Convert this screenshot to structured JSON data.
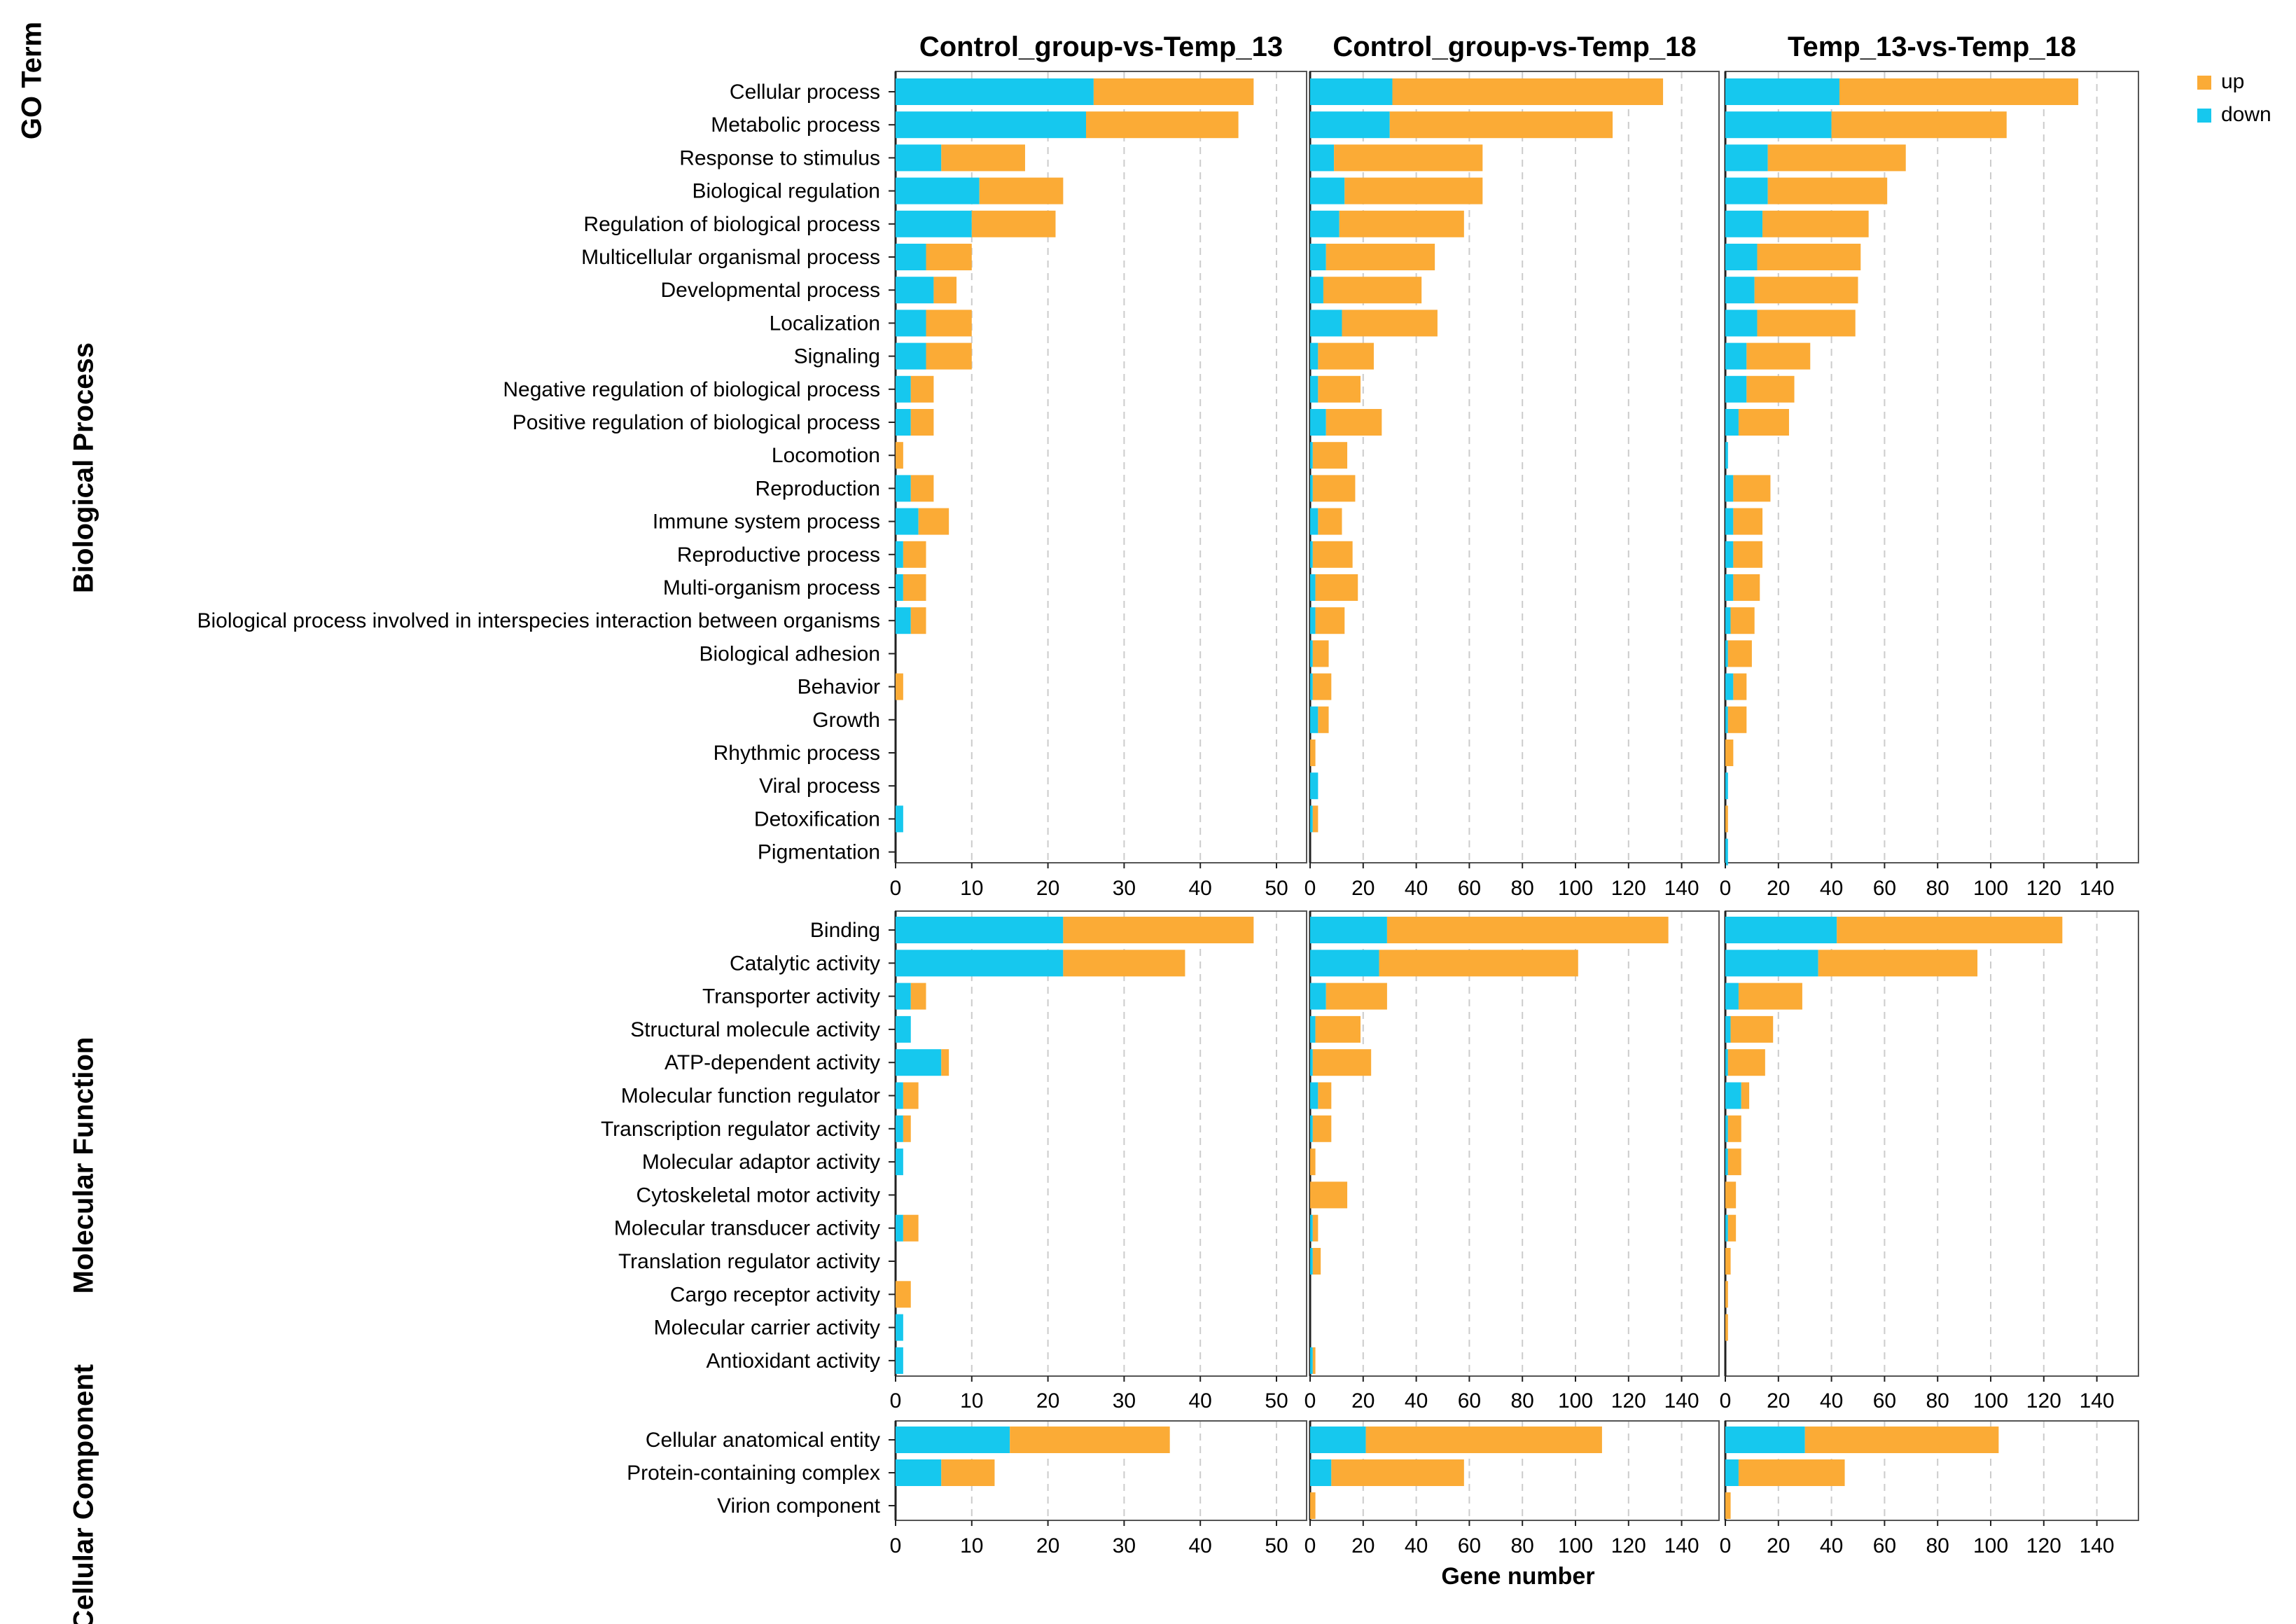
{
  "chart_data": {
    "type": "bar",
    "stacked": true,
    "orientation": "horizontal",
    "title_y": "GO Term",
    "xlabel": "Gene number",
    "colors": {
      "up": "#FBAB36",
      "down": "#16C8EE"
    },
    "legend": {
      "placement": "top-right",
      "entries": [
        {
          "key": "up",
          "label": "up"
        },
        {
          "key": "down",
          "label": "down"
        }
      ]
    },
    "comparisons": [
      {
        "title": "Control_group-vs-Temp_13",
        "xlim": [
          0,
          54
        ],
        "ticks": [
          "0",
          "10",
          "20",
          "30",
          "40",
          "50"
        ]
      },
      {
        "title": "Control_group-vs-Temp_18",
        "xlim": [
          0,
          154
        ],
        "ticks": [
          "0",
          "20",
          "40",
          "60",
          "80",
          "100",
          "120",
          "140"
        ]
      },
      {
        "title": "Temp_13-vs-Temp_18",
        "xlim": [
          0,
          154
        ],
        "ticks": [
          "0",
          "20",
          "40",
          "60",
          "80",
          "100",
          "120",
          "140"
        ]
      }
    ],
    "groups": [
      {
        "name": "Biological Process",
        "terms": [
          {
            "name": "Cellular process",
            "down": [
              26,
              31,
              43
            ],
            "up": [
              21,
              102,
              90
            ]
          },
          {
            "name": "Metabolic process",
            "down": [
              25,
              30,
              40
            ],
            "up": [
              20,
              84,
              66
            ]
          },
          {
            "name": "Response to stimulus",
            "down": [
              6,
              9,
              16
            ],
            "up": [
              11,
              56,
              52
            ]
          },
          {
            "name": "Biological regulation",
            "down": [
              11,
              13,
              16
            ],
            "up": [
              11,
              52,
              45
            ]
          },
          {
            "name": "Regulation of biological process",
            "down": [
              10,
              11,
              14
            ],
            "up": [
              11,
              47,
              40
            ]
          },
          {
            "name": "Multicellular organismal process",
            "down": [
              4,
              6,
              12
            ],
            "up": [
              6,
              41,
              39
            ]
          },
          {
            "name": "Developmental process",
            "down": [
              5,
              5,
              11
            ],
            "up": [
              3,
              37,
              39
            ]
          },
          {
            "name": "Localization",
            "down": [
              4,
              12,
              12
            ],
            "up": [
              6,
              36,
              37
            ]
          },
          {
            "name": "Signaling",
            "down": [
              4,
              3,
              8
            ],
            "up": [
              6,
              21,
              24
            ]
          },
          {
            "name": "Negative regulation of biological process",
            "down": [
              2,
              3,
              8
            ],
            "up": [
              3,
              16,
              18
            ]
          },
          {
            "name": "Positive regulation of biological process",
            "down": [
              2,
              6,
              5
            ],
            "up": [
              3,
              21,
              19
            ]
          },
          {
            "name": "Locomotion",
            "down": [
              0,
              1,
              1
            ],
            "up": [
              1,
              13,
              0
            ]
          },
          {
            "name": "Reproduction",
            "down": [
              2,
              1,
              3
            ],
            "up": [
              3,
              16,
              14
            ]
          },
          {
            "name": "Immune system process",
            "down": [
              3,
              3,
              3
            ],
            "up": [
              4,
              9,
              11
            ]
          },
          {
            "name": "Reproductive process",
            "down": [
              1,
              1,
              3
            ],
            "up": [
              3,
              15,
              11
            ]
          },
          {
            "name": "Multi-organism process",
            "down": [
              1,
              2,
              3
            ],
            "up": [
              3,
              16,
              10
            ]
          },
          {
            "name": "Biological process involved in interspecies interaction between organisms",
            "down": [
              2,
              2,
              2
            ],
            "up": [
              2,
              11,
              9
            ]
          },
          {
            "name": "Biological adhesion",
            "down": [
              0,
              1,
              1
            ],
            "up": [
              0,
              6,
              9
            ]
          },
          {
            "name": "Behavior",
            "down": [
              0,
              1,
              3
            ],
            "up": [
              1,
              7,
              5
            ]
          },
          {
            "name": "Growth",
            "down": [
              0,
              3,
              1
            ],
            "up": [
              0,
              4,
              7
            ]
          },
          {
            "name": "Rhythmic process",
            "down": [
              0,
              0,
              0
            ],
            "up": [
              0,
              2,
              3
            ]
          },
          {
            "name": "Viral process",
            "down": [
              0,
              3,
              1
            ],
            "up": [
              0,
              0,
              0
            ]
          },
          {
            "name": "Detoxification",
            "down": [
              1,
              1,
              0
            ],
            "up": [
              0,
              2,
              1
            ]
          },
          {
            "name": "Pigmentation",
            "down": [
              0,
              0,
              1
            ],
            "up": [
              0,
              0,
              0
            ]
          }
        ]
      },
      {
        "name": "Molecular Function",
        "terms": [
          {
            "name": "Binding",
            "down": [
              22,
              29,
              42
            ],
            "up": [
              25,
              106,
              85
            ]
          },
          {
            "name": "Catalytic activity",
            "down": [
              22,
              26,
              35
            ],
            "up": [
              16,
              75,
              60
            ]
          },
          {
            "name": "Transporter activity",
            "down": [
              2,
              6,
              5
            ],
            "up": [
              2,
              23,
              24
            ]
          },
          {
            "name": "Structural molecule activity",
            "down": [
              2,
              2,
              2
            ],
            "up": [
              0,
              17,
              16
            ]
          },
          {
            "name": "ATP-dependent activity",
            "down": [
              6,
              1,
              1
            ],
            "up": [
              1,
              22,
              14
            ]
          },
          {
            "name": "Molecular function regulator",
            "down": [
              1,
              3,
              6
            ],
            "up": [
              2,
              5,
              3
            ]
          },
          {
            "name": "Transcription regulator activity",
            "down": [
              1,
              1,
              1
            ],
            "up": [
              1,
              7,
              5
            ]
          },
          {
            "name": "Molecular adaptor activity",
            "down": [
              1,
              0,
              1
            ],
            "up": [
              0,
              2,
              5
            ]
          },
          {
            "name": "Cytoskeletal motor activity",
            "down": [
              0,
              0,
              0
            ],
            "up": [
              0,
              14,
              4
            ]
          },
          {
            "name": "Molecular transducer activity",
            "down": [
              1,
              1,
              1
            ],
            "up": [
              2,
              2,
              3
            ]
          },
          {
            "name": "Translation regulator activity",
            "down": [
              0,
              1,
              0
            ],
            "up": [
              0,
              3,
              2
            ]
          },
          {
            "name": "Cargo receptor activity",
            "down": [
              0,
              0,
              0
            ],
            "up": [
              2,
              0,
              1
            ]
          },
          {
            "name": "Molecular carrier activity",
            "down": [
              1,
              0,
              0
            ],
            "up": [
              0,
              0,
              1
            ]
          },
          {
            "name": "Antioxidant activity",
            "down": [
              1,
              1,
              0
            ],
            "up": [
              0,
              1,
              0
            ]
          }
        ]
      },
      {
        "name": "Cellular Component",
        "terms": [
          {
            "name": "Cellular anatomical entity",
            "down": [
              15,
              21,
              30
            ],
            "up": [
              21,
              89,
              73
            ]
          },
          {
            "name": "Protein-containing complex",
            "down": [
              6,
              8,
              5
            ],
            "up": [
              7,
              50,
              40
            ]
          },
          {
            "name": "Virion component",
            "down": [
              0,
              0,
              0
            ],
            "up": [
              0,
              2,
              2
            ]
          }
        ]
      }
    ]
  }
}
